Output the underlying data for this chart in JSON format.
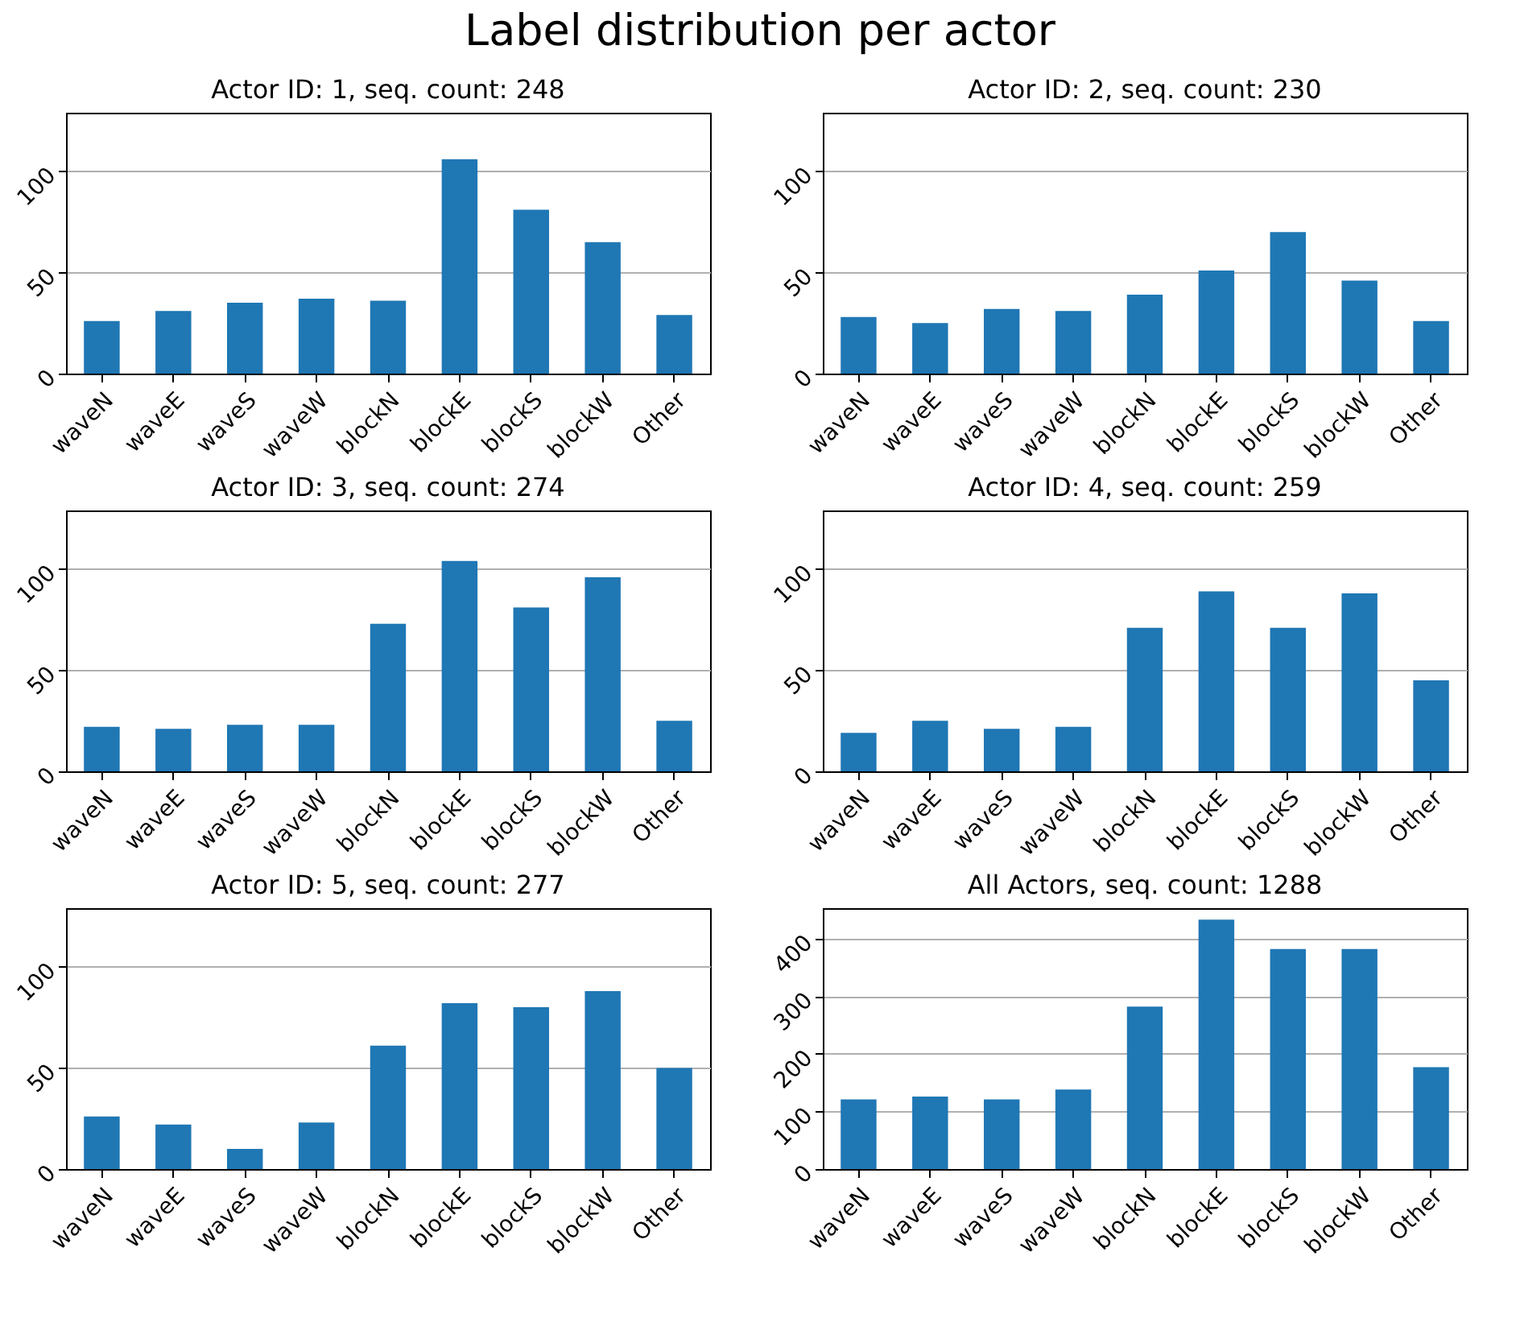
{
  "chart_data": [
    {
      "type": "other",
      "title": "Label distribution per actor"
    },
    {
      "type": "bar",
      "title": "Actor ID: 1, seq. count: 248",
      "categories": [
        "waveN",
        "waveE",
        "waveS",
        "waveW",
        "blockN",
        "blockE",
        "blockS",
        "blockW",
        "Other"
      ],
      "values": [
        26,
        31,
        35,
        37,
        36,
        106,
        81,
        65,
        29
      ],
      "color": "#1f77b4",
      "ylim": [
        0,
        129
      ],
      "yticks": [
        0,
        50,
        100
      ],
      "grid": "y"
    },
    {
      "type": "bar",
      "title": "Actor ID: 2, seq. count: 230",
      "categories": [
        "waveN",
        "waveE",
        "waveS",
        "waveW",
        "blockN",
        "blockE",
        "blockS",
        "blockW",
        "Other"
      ],
      "values": [
        28,
        25,
        32,
        31,
        39,
        51,
        70,
        46,
        26
      ],
      "color": "#1f77b4",
      "ylim": [
        0,
        129
      ],
      "yticks": [
        0,
        50,
        100
      ],
      "grid": "y"
    },
    {
      "type": "bar",
      "title": "Actor ID: 3, seq. count: 274",
      "categories": [
        "waveN",
        "waveE",
        "waveS",
        "waveW",
        "blockN",
        "blockE",
        "blockS",
        "blockW",
        "Other"
      ],
      "values": [
        22,
        21,
        23,
        23,
        73,
        104,
        81,
        96,
        25
      ],
      "color": "#1f77b4",
      "ylim": [
        0,
        129
      ],
      "yticks": [
        0,
        50,
        100
      ],
      "grid": "y"
    },
    {
      "type": "bar",
      "title": "Actor ID: 4, seq. count: 259",
      "categories": [
        "waveN",
        "waveE",
        "waveS",
        "waveW",
        "blockN",
        "blockE",
        "blockS",
        "blockW",
        "Other"
      ],
      "values": [
        19,
        25,
        21,
        22,
        71,
        89,
        71,
        88,
        45
      ],
      "color": "#1f77b4",
      "ylim": [
        0,
        129
      ],
      "yticks": [
        0,
        50,
        100
      ],
      "grid": "y"
    },
    {
      "type": "bar",
      "title": "Actor ID: 5, seq. count: 277",
      "categories": [
        "waveN",
        "waveE",
        "waveS",
        "waveW",
        "blockN",
        "blockE",
        "blockS",
        "blockW",
        "Other"
      ],
      "values": [
        26,
        22,
        10,
        23,
        61,
        82,
        80,
        88,
        50
      ],
      "color": "#1f77b4",
      "ylim": [
        0,
        129
      ],
      "yticks": [
        0,
        50,
        100
      ],
      "grid": "y"
    },
    {
      "type": "bar",
      "title": "All Actors, seq. count: 1288",
      "categories": [
        "waveN",
        "waveE",
        "waveS",
        "waveW",
        "blockN",
        "blockE",
        "blockS",
        "blockW",
        "Other"
      ],
      "values": [
        121,
        126,
        121,
        138,
        282,
        433,
        382,
        382,
        177
      ],
      "color": "#1f77b4",
      "ylim": [
        0,
        453
      ],
      "yticks": [
        0,
        100,
        200,
        300,
        400
      ],
      "grid": "y"
    }
  ]
}
